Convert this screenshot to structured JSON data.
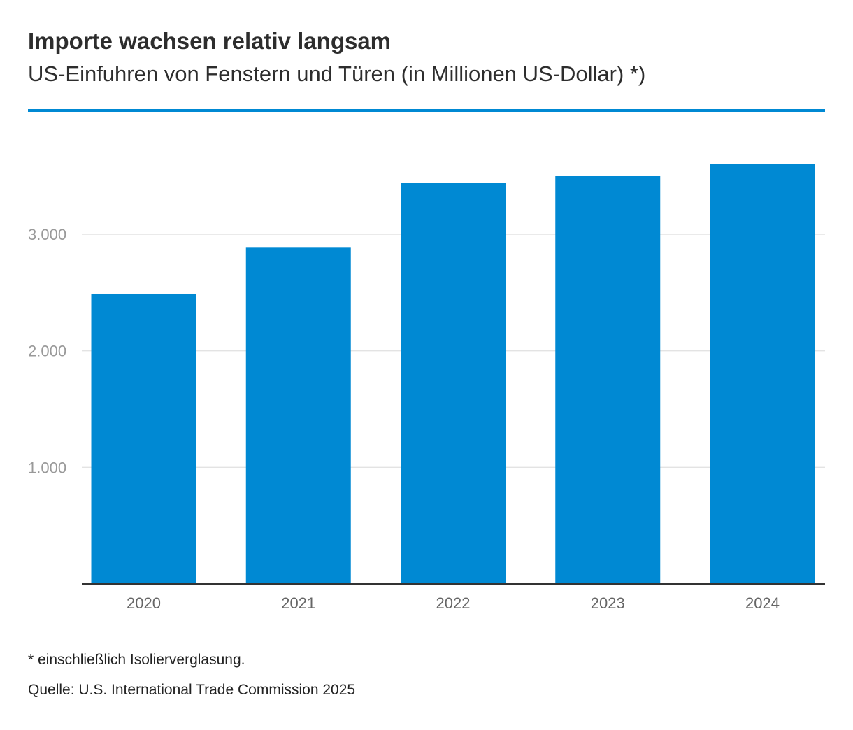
{
  "header": {
    "title": "Importe wachsen relativ langsam",
    "subtitle": "US-Einfuhren von Fenstern und Türen (in Millionen US-Dollar) *)"
  },
  "footer": {
    "note": "* einschließlich Isolierverglasung.",
    "source": "Quelle: U.S. International Trade Commission 2025"
  },
  "colors": {
    "bar": "#0089d3",
    "accent_rule": "#0089d3",
    "gridline": "#e3e3e3",
    "axis": "#333333",
    "tick_label": "#999999",
    "category_label": "#666666"
  },
  "chart_data": {
    "type": "bar",
    "categories": [
      "2020",
      "2021",
      "2022",
      "2023",
      "2024"
    ],
    "values": [
      2490,
      2890,
      3440,
      3500,
      3600
    ],
    "yticks": [
      1000,
      2000,
      3000
    ],
    "ytick_labels": [
      "1.000",
      "2.000",
      "3.000"
    ],
    "ylim": [
      0,
      3600
    ],
    "xlabel": "",
    "ylabel": "",
    "grid": true,
    "legend": "none"
  }
}
